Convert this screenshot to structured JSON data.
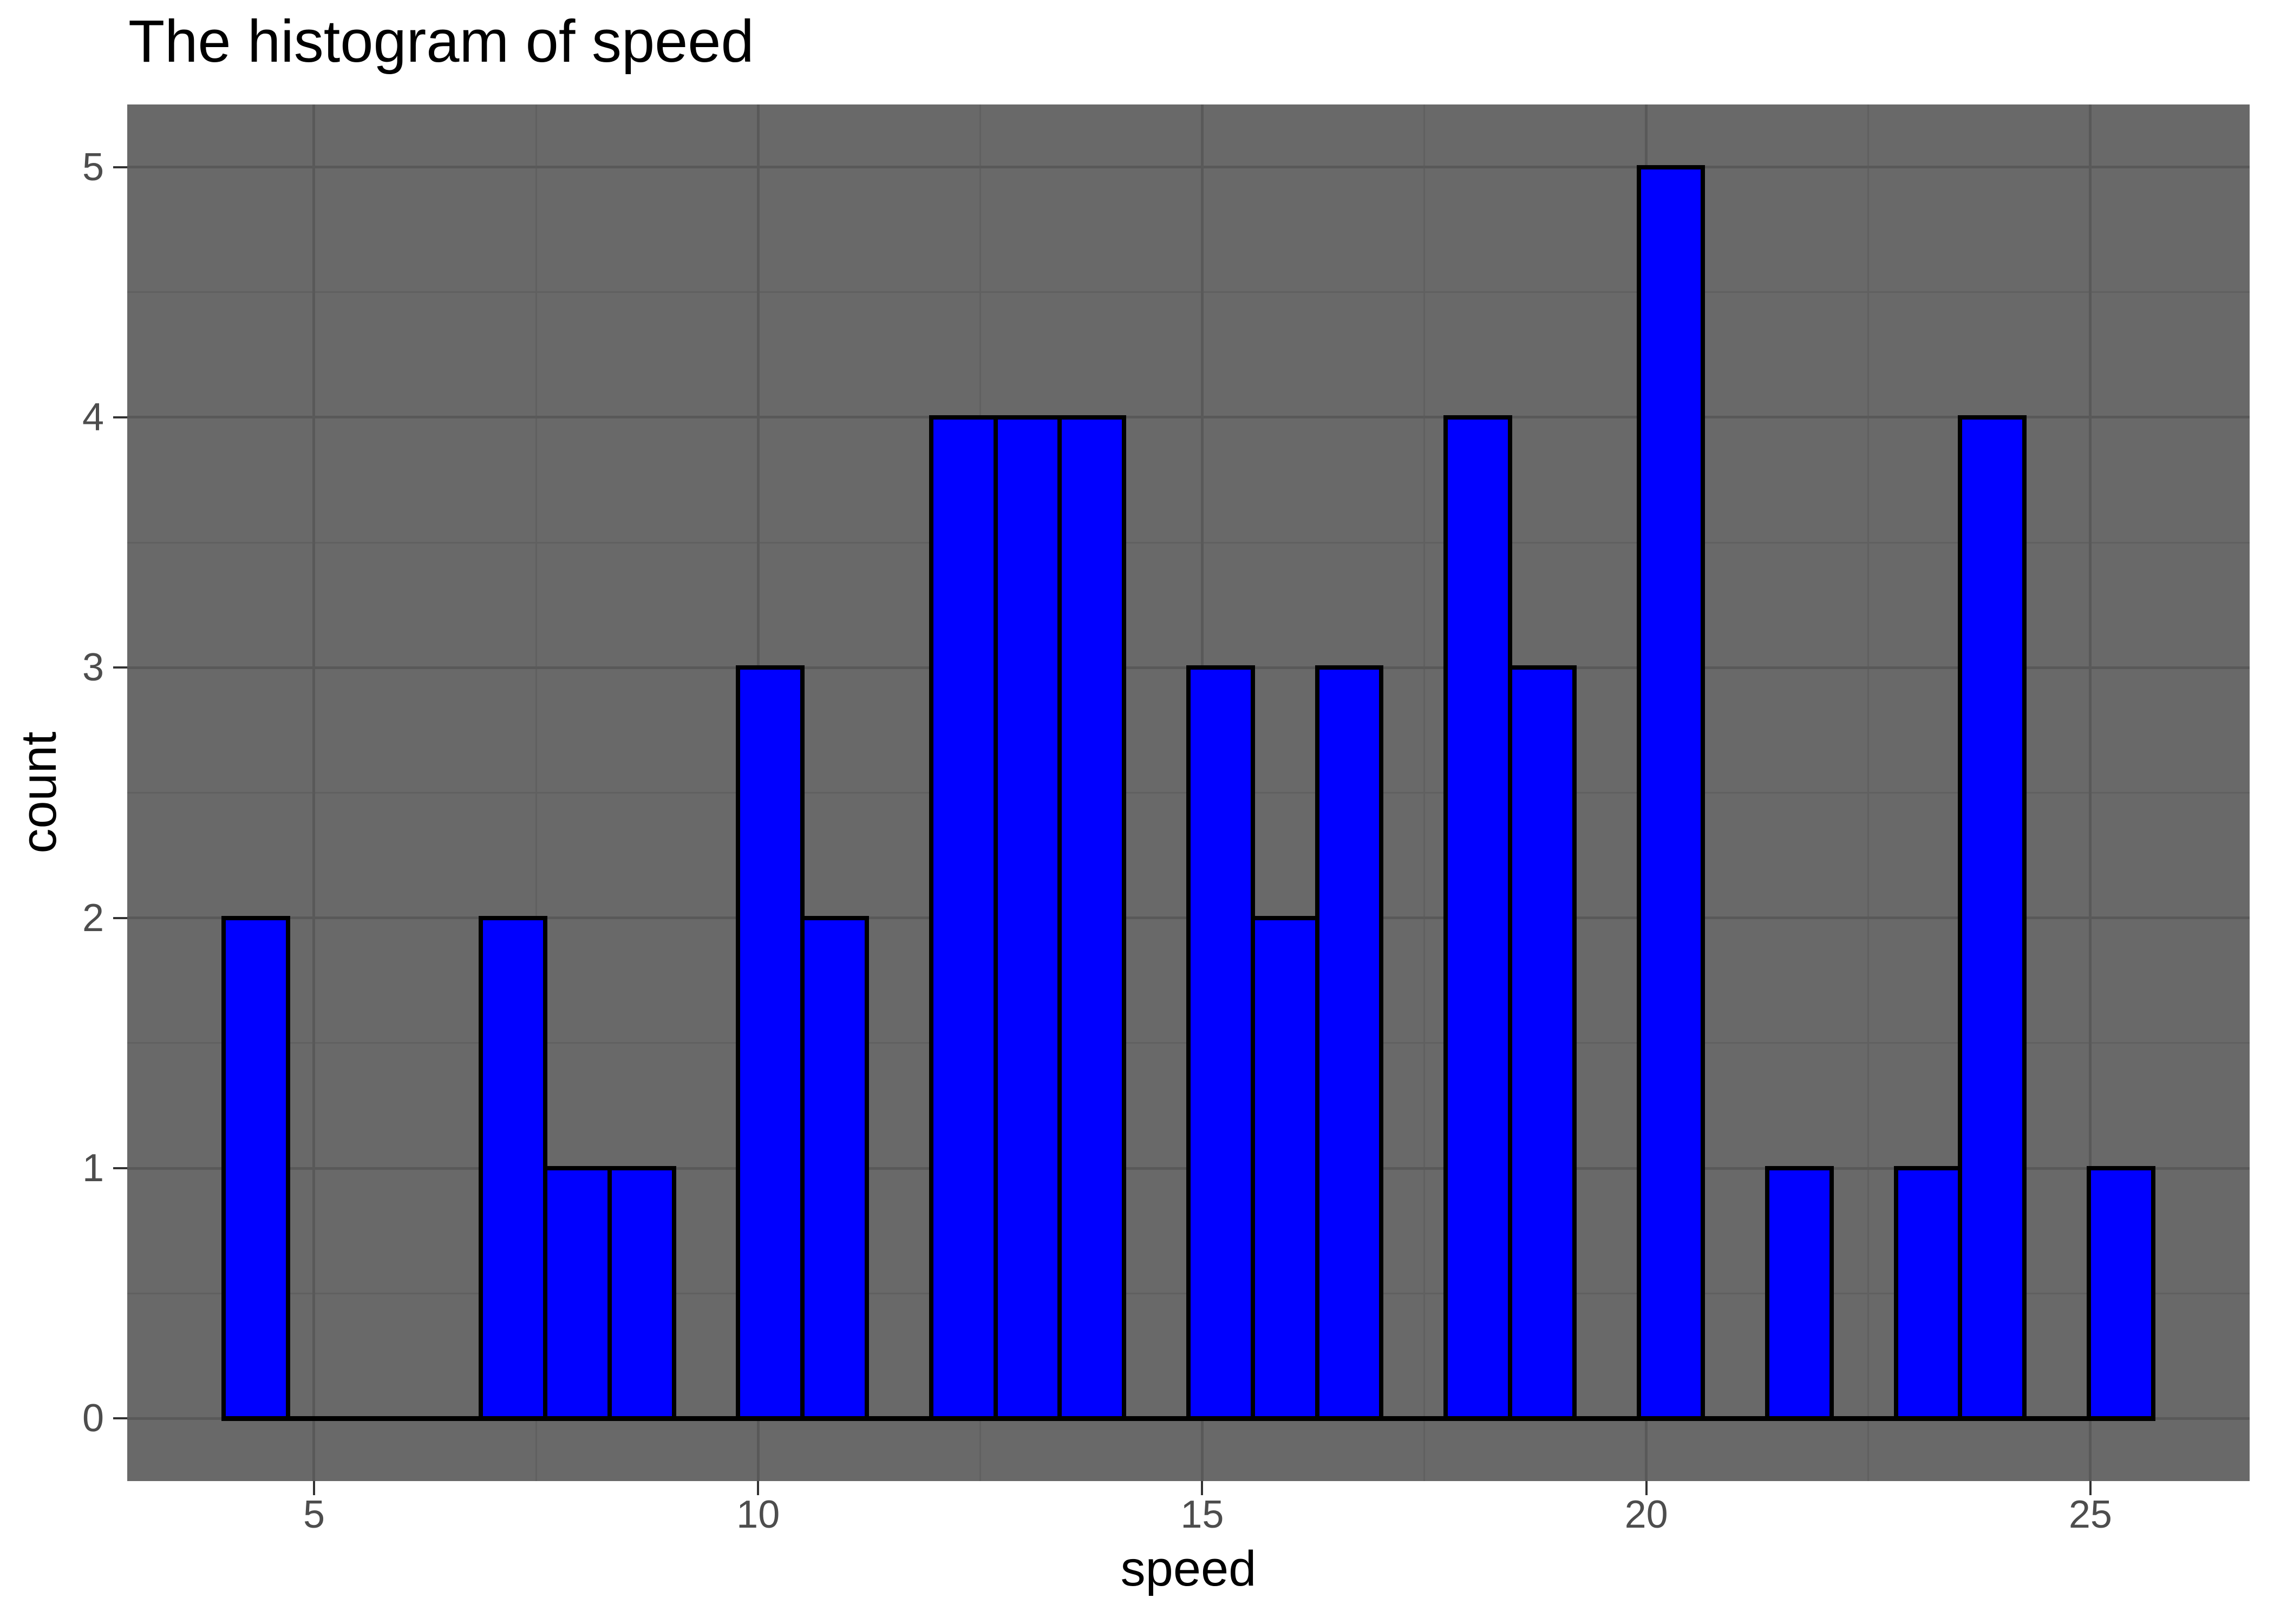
{
  "title": {
    "text": "The histogram of speed",
    "color": "#000000"
  },
  "panel": {
    "background": "#696969"
  },
  "style": {
    "page_background": "#ffffff",
    "grid_major_color": "#595959",
    "grid_minor_color": "#606060",
    "grid_major_width": 5,
    "grid_minor_width": 3,
    "tick_mark_color": "#333333",
    "tick_mark_length": 26,
    "tick_label_color": "#4d4d4d",
    "bar_fill": "#0000ff",
    "bar_stroke": "#000000",
    "bar_stroke_width": 8,
    "baseline_thickness": 9
  },
  "axes": {
    "x": {
      "label": "speed",
      "range": [
        2.897,
        26.793
      ],
      "major_ticks": [
        5,
        10,
        15,
        20,
        25
      ],
      "tick_labels": [
        "5",
        "10",
        "15",
        "20",
        "25"
      ],
      "minor_ticks": [
        7.5,
        12.5,
        17.5,
        22.5
      ]
    },
    "y": {
      "label": "count",
      "range": [
        -0.25,
        5.25
      ],
      "major_ticks": [
        0,
        1,
        2,
        3,
        4,
        5
      ],
      "tick_labels": [
        "0",
        "1",
        "2",
        "3",
        "4",
        "5"
      ],
      "minor_ticks": [
        0.5,
        1.5,
        2.5,
        3.5,
        4.5
      ]
    }
  },
  "chart_data": {
    "type": "bar",
    "subtype": "histogram",
    "title": "The histogram of speed",
    "xlabel": "speed",
    "ylabel": "count",
    "xlim": [
      2.897,
      26.793
    ],
    "ylim": [
      -0.25,
      5.25
    ],
    "grid": "on",
    "legend": "none",
    "bin_width": 0.724,
    "bins": [
      {
        "x0": 3.983,
        "x1": 4.707,
        "center": 4.345,
        "count": 2
      },
      {
        "x0": 6.879,
        "x1": 7.603,
        "center": 7.241,
        "count": 2
      },
      {
        "x0": 7.603,
        "x1": 8.328,
        "center": 7.966,
        "count": 1
      },
      {
        "x0": 8.328,
        "x1": 9.052,
        "center": 8.69,
        "count": 1
      },
      {
        "x0": 9.776,
        "x1": 10.5,
        "center": 10.138,
        "count": 3
      },
      {
        "x0": 10.5,
        "x1": 11.224,
        "center": 10.862,
        "count": 2
      },
      {
        "x0": 11.948,
        "x1": 12.672,
        "center": 12.31,
        "count": 4
      },
      {
        "x0": 12.672,
        "x1": 13.397,
        "center": 13.034,
        "count": 4
      },
      {
        "x0": 13.397,
        "x1": 14.121,
        "center": 13.759,
        "count": 4
      },
      {
        "x0": 14.845,
        "x1": 15.569,
        "center": 15.207,
        "count": 3
      },
      {
        "x0": 15.569,
        "x1": 16.293,
        "center": 15.931,
        "count": 2
      },
      {
        "x0": 16.293,
        "x1": 17.017,
        "center": 16.655,
        "count": 3
      },
      {
        "x0": 17.741,
        "x1": 18.466,
        "center": 18.103,
        "count": 4
      },
      {
        "x0": 18.466,
        "x1": 19.19,
        "center": 18.828,
        "count": 3
      },
      {
        "x0": 19.914,
        "x1": 20.638,
        "center": 20.276,
        "count": 5
      },
      {
        "x0": 21.362,
        "x1": 22.086,
        "center": 21.724,
        "count": 1
      },
      {
        "x0": 22.81,
        "x1": 23.534,
        "center": 23.172,
        "count": 1
      },
      {
        "x0": 23.534,
        "x1": 24.259,
        "center": 23.897,
        "count": 4
      },
      {
        "x0": 24.983,
        "x1": 25.707,
        "center": 25.345,
        "count": 1
      }
    ],
    "baseline_extent": [
      3.983,
      25.707
    ]
  }
}
